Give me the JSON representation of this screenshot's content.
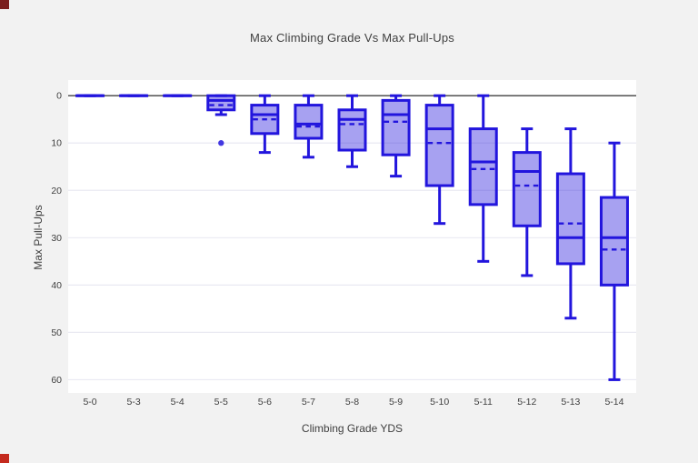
{
  "chart_data": {
    "type": "box",
    "title": "Max Climbing Grade Vs Max Pull-Ups",
    "xlabel": "Climbing Grade YDS",
    "ylabel": "Max Pull-Ups",
    "y_ticks": [
      0,
      10,
      20,
      30,
      40,
      50,
      60
    ],
    "y_range": [
      -3.3,
      62.8
    ],
    "y_inverted": true,
    "grid": true,
    "legend": "none",
    "categories": [
      "5-0",
      "5-3",
      "5-4",
      "5-5",
      "5-6",
      "5-7",
      "5-8",
      "5-9",
      "5-10",
      "5-11",
      "5-12",
      "5-13",
      "5-14"
    ],
    "boxes": [
      {
        "category": "5-0",
        "min": 0,
        "q1": 0,
        "median": 0,
        "mean": 0,
        "q3": 0,
        "max": 0,
        "outliers": []
      },
      {
        "category": "5-3",
        "min": 0,
        "q1": 0,
        "median": 0,
        "mean": 0,
        "q3": 0,
        "max": 0,
        "outliers": []
      },
      {
        "category": "5-4",
        "min": 0,
        "q1": 0,
        "median": 0,
        "mean": 0,
        "q3": 0,
        "max": 0,
        "outliers": []
      },
      {
        "category": "5-5",
        "min": 0,
        "q1": 0,
        "median": 1,
        "mean": 2,
        "q3": 3,
        "max": 4,
        "outliers": [
          10
        ]
      },
      {
        "category": "5-6",
        "min": 0,
        "q1": 2,
        "median": 4,
        "mean": 5,
        "q3": 8,
        "max": 12,
        "outliers": []
      },
      {
        "category": "5-7",
        "min": 0,
        "q1": 2,
        "median": 6,
        "mean": 6.5,
        "q3": 9,
        "max": 13,
        "outliers": []
      },
      {
        "category": "5-8",
        "min": 0,
        "q1": 3,
        "median": 5,
        "mean": 6,
        "q3": 11.5,
        "max": 15,
        "outliers": []
      },
      {
        "category": "5-9",
        "min": 0,
        "q1": 1,
        "median": 4,
        "mean": 5.5,
        "q3": 12.5,
        "max": 17,
        "outliers": []
      },
      {
        "category": "5-10",
        "min": 0,
        "q1": 2,
        "median": 7,
        "mean": 10,
        "q3": 19,
        "max": 27,
        "outliers": []
      },
      {
        "category": "5-11",
        "min": 0,
        "q1": 7,
        "median": 14,
        "mean": 15.5,
        "q3": 23,
        "max": 35,
        "outliers": []
      },
      {
        "category": "5-12",
        "min": 7,
        "q1": 12,
        "median": 16,
        "mean": 19,
        "q3": 27.5,
        "max": 38,
        "outliers": []
      },
      {
        "category": "5-13",
        "min": 7,
        "q1": 16.5,
        "median": 30,
        "mean": 27,
        "q3": 35.5,
        "max": 47,
        "outliers": []
      },
      {
        "category": "5-14",
        "min": 10,
        "q1": 21.5,
        "median": 30,
        "mean": 32.5,
        "q3": 40,
        "max": 60,
        "outliers": []
      }
    ],
    "colors": {
      "box_line": "#2215dd",
      "box_fill_opacity": 0.4,
      "outlier_fill_opacity": 0.85,
      "zero_line": "#3f3f3f",
      "grid_line": "#e9e9f2",
      "paper_bg": "#f2f2f2",
      "plot_bg": "#ffffff",
      "text": "#3f3f3f"
    }
  },
  "decorations": {
    "corner_marker_top_left_color": "#7a1e1e",
    "corner_marker_bottom_left_color": "#c42a1e"
  }
}
